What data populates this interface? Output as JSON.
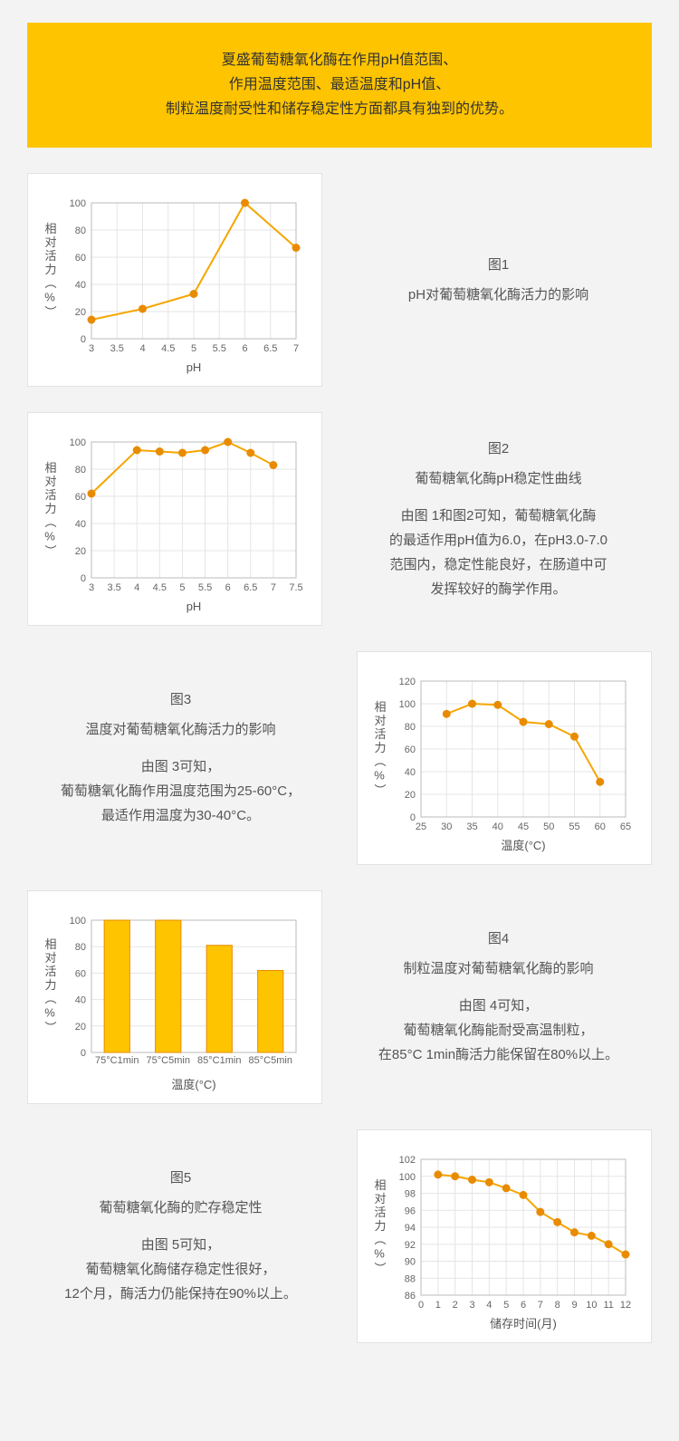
{
  "hero": {
    "line1": "夏盛葡萄糖氧化酶在作用pH值范围、",
    "line2": "作用温度范围、最适温度和pH值、",
    "line3": "制粒温度耐受性和储存稳定性方面都具有独到的优势。",
    "bg": "#ffc400"
  },
  "colors": {
    "line": "#f5a600",
    "dot": "#e98b00",
    "bar_fill": "#ffc400",
    "bar_stroke": "#e98b00",
    "grid": "#e5e5e5",
    "axis": "#bbb",
    "chart_bg": "#ffffff"
  },
  "chart1": {
    "type": "line",
    "ylabel": "相对活力（%）",
    "xlabel": "pH",
    "xlim": [
      3,
      7
    ],
    "xtick_step": 0.5,
    "ylim": [
      0,
      100
    ],
    "ytick_step": 20,
    "points": [
      {
        "x": 3.0,
        "y": 14
      },
      {
        "x": 4.0,
        "y": 22
      },
      {
        "x": 5.0,
        "y": 33
      },
      {
        "x": 6.0,
        "y": 100
      },
      {
        "x": 7.0,
        "y": 67
      }
    ],
    "caption_title": "图1",
    "caption_text": "pH对葡萄糖氧化酶活力的影响"
  },
  "chart2": {
    "type": "line",
    "ylabel": "相对活力（%）",
    "xlabel": "pH",
    "xlim": [
      3,
      7.5
    ],
    "xtick_step": 0.5,
    "ylim": [
      0,
      100
    ],
    "ytick_step": 20,
    "points": [
      {
        "x": 3.0,
        "y": 62
      },
      {
        "x": 4.0,
        "y": 94
      },
      {
        "x": 4.5,
        "y": 93
      },
      {
        "x": 5.0,
        "y": 92
      },
      {
        "x": 5.5,
        "y": 94
      },
      {
        "x": 6.0,
        "y": 100
      },
      {
        "x": 6.5,
        "y": 92
      },
      {
        "x": 7.0,
        "y": 83
      }
    ],
    "caption_title": "图2",
    "caption_text": "葡萄糖氧化酶pH稳定性曲线",
    "caption_desc1": "由图 1和图2可知，葡萄糖氧化酶",
    "caption_desc2": "的最适作用pH值为6.0，在pH3.0-7.0",
    "caption_desc3": "范围内，稳定性能良好，在肠道中可",
    "caption_desc4": "发挥较好的酶学作用。"
  },
  "chart3": {
    "type": "line",
    "ylabel": "相对活力（%）",
    "xlabel": "温度(°C)",
    "xlim": [
      25,
      65
    ],
    "xtick_step": 5,
    "ylim": [
      0,
      120
    ],
    "ytick_step": 20,
    "points": [
      {
        "x": 30,
        "y": 91
      },
      {
        "x": 35,
        "y": 100
      },
      {
        "x": 40,
        "y": 99
      },
      {
        "x": 45,
        "y": 84
      },
      {
        "x": 50,
        "y": 82
      },
      {
        "x": 55,
        "y": 71
      },
      {
        "x": 60,
        "y": 31
      }
    ],
    "caption_title": "图3",
    "caption_text": "温度对葡萄糖氧化酶活力的影响",
    "caption_desc1": "由图 3可知，",
    "caption_desc2": "葡萄糖氧化酶作用温度范围为25-60°C，",
    "caption_desc3": "最适作用温度为30-40°C。"
  },
  "chart4": {
    "type": "bar",
    "ylabel": "相对活力（%）",
    "xlabel": "温度(°C)",
    "ylim": [
      0,
      100
    ],
    "ytick_step": 20,
    "bars": [
      {
        "label": "75°C1min",
        "value": 100
      },
      {
        "label": "75°C5min",
        "value": 100
      },
      {
        "label": "85°C1min",
        "value": 81
      },
      {
        "label": "85°C5min",
        "value": 62
      }
    ],
    "caption_title": "图4",
    "caption_text": "制粒温度对葡萄糖氧化酶的影响",
    "caption_desc1": "由图 4可知，",
    "caption_desc2": "葡萄糖氧化酶能耐受高温制粒，",
    "caption_desc3": "在85°C 1min酶活力能保留在80%以上。"
  },
  "chart5": {
    "type": "line",
    "ylabel": "相对活力（%）",
    "xlabel": "储存时间(月)",
    "xlim": [
      0,
      12
    ],
    "xtick_step": 1,
    "ylim": [
      86,
      102
    ],
    "ytick_step": 2,
    "points": [
      {
        "x": 1,
        "y": 100.2
      },
      {
        "x": 2,
        "y": 100.0
      },
      {
        "x": 3,
        "y": 99.6
      },
      {
        "x": 4,
        "y": 99.3
      },
      {
        "x": 5,
        "y": 98.6
      },
      {
        "x": 6,
        "y": 97.8
      },
      {
        "x": 7,
        "y": 95.8
      },
      {
        "x": 8,
        "y": 94.6
      },
      {
        "x": 9,
        "y": 93.4
      },
      {
        "x": 10,
        "y": 93.0
      },
      {
        "x": 11,
        "y": 92.0
      },
      {
        "x": 12,
        "y": 90.8
      }
    ],
    "caption_title": "图5",
    "caption_text": "葡萄糖氧化酶的贮存稳定性",
    "caption_desc1": "由图 5可知，",
    "caption_desc2": "葡萄糖氧化酶储存稳定性很好，",
    "caption_desc3": "12个月，酶活力仍能保持在90%以上。"
  }
}
